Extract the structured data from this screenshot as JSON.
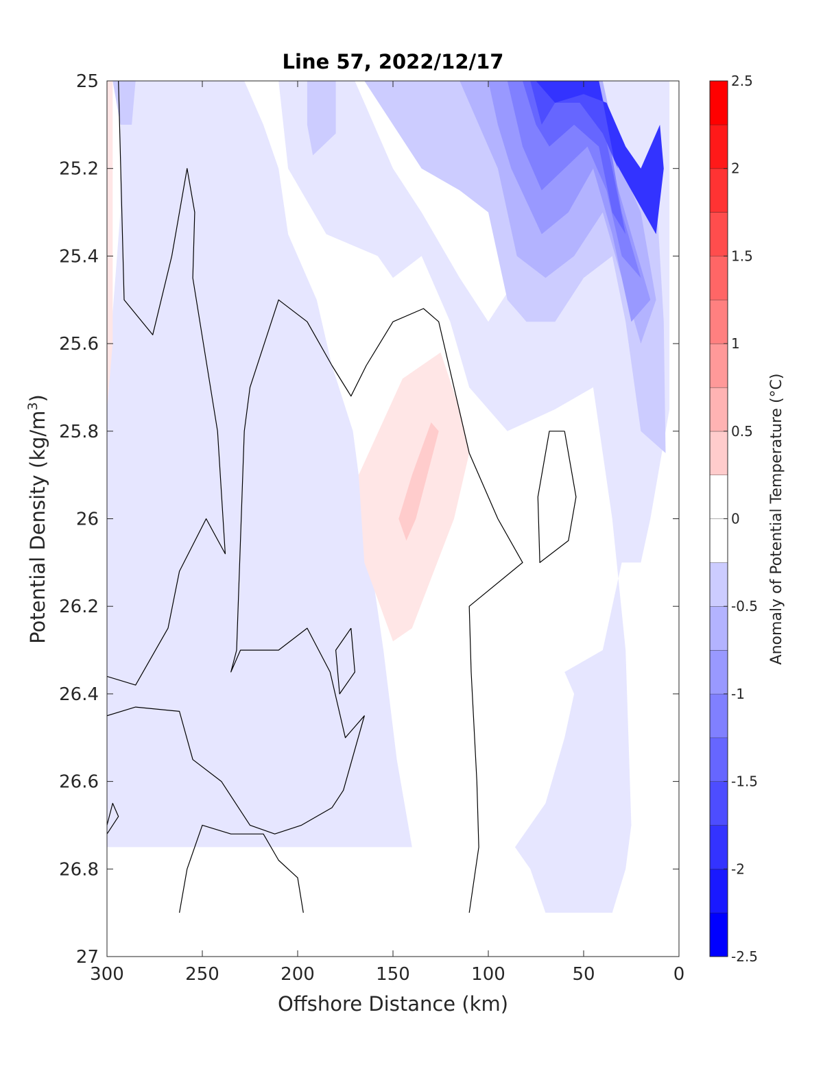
{
  "chart_data": {
    "type": "contour",
    "title": "Line 57, 2022/12/17",
    "xlabel": "Offshore Distance (km)",
    "ylabel_main": "Potential Density (kg/m",
    "ylabel_sup": "3",
    "ylabel_close": ")",
    "xlim": [
      300,
      0
    ],
    "ylim": [
      25,
      27
    ],
    "y_reversed": true,
    "x_ticks": [
      "300",
      "250",
      "200",
      "150",
      "100",
      "50",
      "0"
    ],
    "y_ticks": [
      "25",
      "25.2",
      "25.4",
      "25.6",
      "25.8",
      "26",
      "26.2",
      "26.4",
      "26.6",
      "26.8",
      "27"
    ],
    "grid": false,
    "colorbar": {
      "label": "Anomaly of Potential Temperature (°C)",
      "range": [
        -2.5,
        2.5
      ],
      "step": 0.25,
      "tick_labels": [
        "2.5",
        "2",
        "1.5",
        "1",
        "0.5",
        "0",
        "-0.5",
        "-1",
        "-1.5",
        "-2",
        "-2.5"
      ],
      "colormap": "blue-white-red"
    },
    "filled_regions": [
      {
        "level": -0.25,
        "polygon": [
          [
            293,
            25
          ],
          [
            228,
            25
          ],
          [
            218,
            25.1
          ],
          [
            210,
            25.2
          ],
          [
            205,
            25.35
          ],
          [
            190,
            25.5
          ],
          [
            182,
            25.65
          ],
          [
            171,
            25.8
          ],
          [
            165,
            26
          ],
          [
            155,
            26.3
          ],
          [
            148,
            26.55
          ],
          [
            140,
            26.75
          ],
          [
            300,
            26.75
          ],
          [
            300,
            25.7
          ],
          [
            293,
            25.3
          ]
        ]
      },
      {
        "level": 0.25,
        "polygon": [
          [
            300,
            25
          ],
          [
            297,
            25
          ],
          [
            297,
            25.6
          ],
          [
            300,
            25.75
          ]
        ]
      },
      {
        "level": -0.25,
        "polygon": [
          [
            230,
            25
          ],
          [
            210,
            25
          ],
          [
            205,
            25.2
          ],
          [
            185,
            25.35
          ],
          [
            158,
            25.4
          ],
          [
            150,
            25.45
          ],
          [
            135,
            25.4
          ],
          [
            120,
            25.55
          ],
          [
            110,
            25.7
          ],
          [
            90,
            25.8
          ],
          [
            65,
            25.75
          ],
          [
            45,
            25.7
          ],
          [
            35,
            26
          ],
          [
            28,
            26.3
          ],
          [
            25,
            26.7
          ],
          [
            28,
            26.8
          ],
          [
            35,
            26.9
          ],
          [
            70,
            26.9
          ],
          [
            78,
            26.8
          ],
          [
            86,
            26.75
          ],
          [
            70,
            26.65
          ],
          [
            60,
            26.5
          ],
          [
            55,
            26.4
          ],
          [
            60,
            26.35
          ],
          [
            40,
            26.3
          ],
          [
            30,
            26.1
          ],
          [
            20,
            26.1
          ],
          [
            15,
            26
          ],
          [
            5,
            25.75
          ],
          [
            5,
            25
          ],
          [
            45,
            25
          ],
          [
            55,
            25.2
          ],
          [
            72,
            25.3
          ],
          [
            85,
            25.45
          ],
          [
            100,
            25.55
          ],
          [
            115,
            25.45
          ],
          [
            135,
            25.3
          ],
          [
            150,
            25.2
          ],
          [
            165,
            25.05
          ],
          [
            170,
            25
          ]
        ]
      },
      {
        "level": -0.5,
        "polygon": [
          [
            300,
            25
          ],
          [
            297,
            25
          ],
          [
            293,
            25.1
          ],
          [
            287,
            25.1
          ],
          [
            285,
            25
          ],
          [
            300,
            25
          ]
        ]
      },
      {
        "level": -0.5,
        "polygon": [
          [
            195,
            25
          ],
          [
            180,
            25
          ],
          [
            180,
            25.12
          ],
          [
            192,
            25.17
          ],
          [
            195,
            25.1
          ]
        ]
      },
      {
        "level": -0.5,
        "polygon": [
          [
            165,
            25
          ],
          [
            45,
            25
          ],
          [
            35,
            25.1
          ],
          [
            25,
            25.2
          ],
          [
            12,
            25.25
          ],
          [
            8,
            25.55
          ],
          [
            7,
            25.85
          ],
          [
            20,
            25.8
          ],
          [
            28,
            25.55
          ],
          [
            35,
            25.4
          ],
          [
            50,
            25.45
          ],
          [
            65,
            25.55
          ],
          [
            80,
            25.55
          ],
          [
            90,
            25.5
          ],
          [
            100,
            25.3
          ],
          [
            115,
            25.25
          ],
          [
            135,
            25.2
          ],
          [
            150,
            25.1
          ]
        ]
      },
      {
        "level": -0.75,
        "polygon": [
          [
            115,
            25
          ],
          [
            40,
            25
          ],
          [
            30,
            25.2
          ],
          [
            20,
            25.3
          ],
          [
            12,
            25.5
          ],
          [
            20,
            25.6
          ],
          [
            30,
            25.45
          ],
          [
            40,
            25.3
          ],
          [
            55,
            25.4
          ],
          [
            70,
            25.45
          ],
          [
            85,
            25.4
          ],
          [
            95,
            25.2
          ],
          [
            105,
            25.1
          ]
        ]
      },
      {
        "level": -1.0,
        "polygon": [
          [
            100,
            25
          ],
          [
            45,
            25
          ],
          [
            35,
            25.2
          ],
          [
            25,
            25.35
          ],
          [
            15,
            25.5
          ],
          [
            25,
            25.55
          ],
          [
            35,
            25.35
          ],
          [
            45,
            25.2
          ],
          [
            58,
            25.3
          ],
          [
            72,
            25.35
          ],
          [
            88,
            25.2
          ],
          [
            95,
            25.1
          ]
        ]
      },
      {
        "level": -1.25,
        "polygon": [
          [
            90,
            25
          ],
          [
            45,
            25
          ],
          [
            38,
            25.1
          ],
          [
            30,
            25.3
          ],
          [
            20,
            25.45
          ],
          [
            30,
            25.4
          ],
          [
            38,
            25.25
          ],
          [
            48,
            25.15
          ],
          [
            60,
            25.2
          ],
          [
            72,
            25.25
          ],
          [
            82,
            25.15
          ]
        ]
      },
      {
        "level": -1.5,
        "polygon": [
          [
            82,
            25
          ],
          [
            45,
            25
          ],
          [
            35,
            25.2
          ],
          [
            28,
            25.35
          ],
          [
            35,
            25.3
          ],
          [
            42,
            25.15
          ],
          [
            55,
            25.1
          ],
          [
            68,
            25.15
          ],
          [
            75,
            25.1
          ]
        ]
      },
      {
        "level": -1.75,
        "polygon": [
          [
            78,
            25
          ],
          [
            42,
            25
          ],
          [
            32,
            25.2
          ],
          [
            40,
            25.12
          ],
          [
            52,
            25.05
          ],
          [
            65,
            25.05
          ],
          [
            72,
            25.1
          ]
        ]
      },
      {
        "level": -2.0,
        "polygon": [
          [
            75,
            25
          ],
          [
            42,
            25
          ],
          [
            34,
            25.18
          ],
          [
            25,
            25.25
          ],
          [
            12,
            25.35
          ],
          [
            8,
            25.2
          ],
          [
            10,
            25.1
          ],
          [
            20,
            25.2
          ],
          [
            28,
            25.15
          ],
          [
            38,
            25.05
          ],
          [
            50,
            25.03
          ],
          [
            65,
            25.05
          ]
        ]
      },
      {
        "level": 0.25,
        "polygon": [
          [
            125,
            25.62
          ],
          [
            145,
            25.68
          ],
          [
            168,
            25.9
          ],
          [
            165,
            26.1
          ],
          [
            150,
            26.28
          ],
          [
            140,
            26.25
          ],
          [
            118,
            26.0
          ],
          [
            110,
            25.85
          ],
          [
            115,
            25.75
          ]
        ]
      },
      {
        "level": 0.5,
        "polygon": [
          [
            130,
            25.78
          ],
          [
            140,
            25.9
          ],
          [
            147,
            26.0
          ],
          [
            143,
            26.05
          ],
          [
            138,
            26.0
          ],
          [
            126,
            25.8
          ]
        ]
      }
    ],
    "contour_lines_zero": [
      {
        "points": [
          [
            294,
            25
          ],
          [
            291,
            25.5
          ],
          [
            276,
            25.58
          ],
          [
            266,
            25.4
          ],
          [
            258,
            25.2
          ],
          [
            254,
            25.3
          ],
          [
            255,
            25.45
          ],
          [
            242,
            25.8
          ],
          [
            238,
            26.08
          ],
          [
            248,
            26.0
          ],
          [
            262,
            26.12
          ],
          [
            268,
            26.25
          ],
          [
            285,
            26.38
          ],
          [
            300,
            26.36
          ]
        ]
      },
      {
        "points": [
          [
            300,
            26.45
          ],
          [
            285,
            26.43
          ],
          [
            262,
            26.44
          ],
          [
            255,
            26.55
          ],
          [
            240,
            26.6
          ],
          [
            225,
            26.7
          ],
          [
            212,
            26.72
          ],
          [
            198,
            26.7
          ],
          [
            182,
            26.66
          ],
          [
            176,
            26.62
          ],
          [
            165,
            26.45
          ],
          [
            175,
            26.5
          ],
          [
            183,
            26.35
          ],
          [
            195,
            26.25
          ],
          [
            210,
            26.3
          ],
          [
            230,
            26.3
          ],
          [
            235,
            26.35
          ],
          [
            232,
            26.3
          ],
          [
            228,
            25.8
          ],
          [
            225,
            25.7
          ],
          [
            210,
            25.5
          ],
          [
            195,
            25.55
          ],
          [
            182,
            25.65
          ],
          [
            172,
            25.72
          ],
          [
            164,
            25.65
          ],
          [
            150,
            25.55
          ],
          [
            134,
            25.52
          ],
          [
            126,
            25.55
          ],
          [
            110,
            25.85
          ],
          [
            95,
            26.0
          ],
          [
            82,
            26.1
          ],
          [
            110,
            26.2
          ],
          [
            109,
            26.35
          ],
          [
            106,
            26.6
          ],
          [
            105,
            26.75
          ],
          [
            110,
            26.9
          ]
        ]
      },
      {
        "points": [
          [
            172,
            26.25
          ],
          [
            180,
            26.3
          ],
          [
            178,
            26.4
          ],
          [
            170,
            26.35
          ],
          [
            172,
            26.25
          ]
        ]
      },
      {
        "points": [
          [
            60,
            25.8
          ],
          [
            54,
            25.95
          ],
          [
            58,
            26.05
          ],
          [
            73,
            26.1
          ],
          [
            74,
            25.95
          ],
          [
            68,
            25.8
          ],
          [
            60,
            25.8
          ]
        ]
      },
      {
        "points": [
          [
            262,
            26.9
          ],
          [
            258,
            26.8
          ],
          [
            250,
            26.7
          ],
          [
            235,
            26.72
          ],
          [
            218,
            26.72
          ],
          [
            210,
            26.78
          ],
          [
            200,
            26.82
          ],
          [
            197,
            26.9
          ]
        ]
      },
      {
        "points": [
          [
            300,
            26.7
          ],
          [
            297,
            26.65
          ],
          [
            294,
            26.68
          ],
          [
            300,
            26.72
          ]
        ]
      }
    ]
  }
}
